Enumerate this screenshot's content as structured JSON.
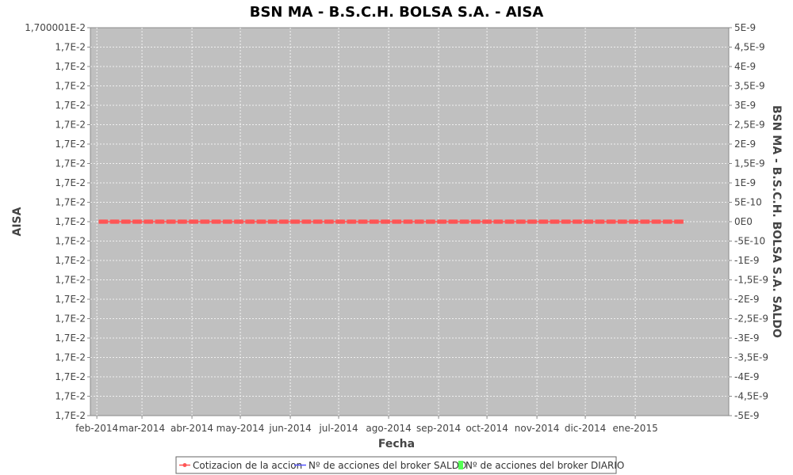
{
  "chart_data": {
    "type": "line",
    "title": "BSN MA - B.S.C.H. BOLSA S.A. - AISA",
    "xlabel": "Fecha",
    "ylabel": "AISA",
    "y2label": "BSN MA - B.S.C.H. BOLSA S.A. SALDO",
    "x_ticks": [
      "feb-2014",
      "mar-2014",
      "abr-2014",
      "may-2014",
      "jun-2014",
      "jul-2014",
      "ago-2014",
      "sep-2014",
      "oct-2014",
      "nov-2014",
      "dic-2014",
      "ene-2015"
    ],
    "y_ticks": [
      "1,700001E-2",
      "1,7E-2",
      "1,7E-2",
      "1,7E-2",
      "1,7E-2",
      "1,7E-2",
      "1,7E-2",
      "1,7E-2",
      "1,7E-2",
      "1,7E-2",
      "1,7E-2",
      "1,7E-2",
      "1,7E-2",
      "1,7E-2",
      "1,7E-2",
      "1,7E-2",
      "1,7E-2",
      "1,7E-2",
      "1,7E-2",
      "1,7E-2",
      "1,7E-2"
    ],
    "y2_ticks": [
      "5E-9",
      "4,5E-9",
      "4E-9",
      "3,5E-9",
      "3E-9",
      "2,5E-9",
      "2E-9",
      "1,5E-9",
      "1E-9",
      "5E-10",
      "0E0",
      "-5E-10",
      "-1E-9",
      "-1,5E-9",
      "-2E-9",
      "-2,5E-9",
      "-3E-9",
      "-3,5E-9",
      "-4E-9",
      "-4,5E-9",
      "-5E-9"
    ],
    "y2lim": [
      -5e-09,
      5e-09
    ],
    "xlim": [
      "2014-01-28",
      "2015-02-28"
    ],
    "grid": true,
    "legend_position": "bottom",
    "series": [
      {
        "name": "Cotizacion de la accion",
        "color": "#ff5555",
        "kind": "line",
        "value": 0.017,
        "start": "2014-02-03",
        "end": "2015-01-30"
      },
      {
        "name": "Nº de acciones del broker SALDO",
        "color": "#5555ff",
        "kind": "line"
      },
      {
        "name": "Nº de acciones del broker DIARIO",
        "color": "#55ff55",
        "kind": "bar"
      }
    ]
  }
}
